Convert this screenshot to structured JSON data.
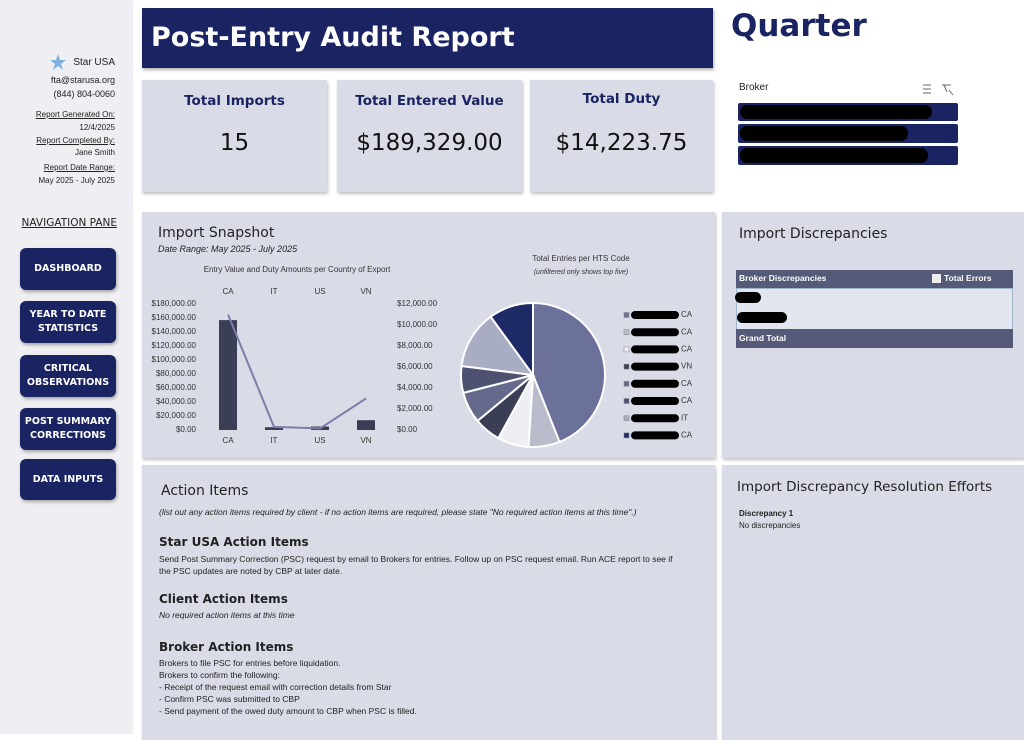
{
  "sidebar": {
    "company": "Star USA",
    "email": "fta@starusa.org",
    "phone": "(844) 804-0060",
    "generated_label": "Report Generated On:",
    "generated": "12/4/2025",
    "completed_label": "Report Completed By:",
    "completed_by": "Jane Smith",
    "range_label": "Report Date Range:",
    "range": "May 2025 - July 2025",
    "nav_title": "NAVIGATION PANE",
    "nav": [
      "DASHBOARD",
      "YEAR TO DATE STATISTICS",
      "CRITICAL OBSERVATIONS",
      "POST SUMMARY CORRECTIONS",
      "DATA INPUTS"
    ]
  },
  "header": {
    "title": "Post-Entry Audit Report",
    "period": "Quarter"
  },
  "kpis": [
    {
      "label": "Total Imports",
      "value": "15"
    },
    {
      "label": "Total Entered Value",
      "value": "$189,329.00"
    },
    {
      "label": "Total Duty",
      "value": "$14,223.75"
    }
  ],
  "broker": {
    "label": "Broker"
  },
  "snapshot": {
    "title": "Import Snapshot",
    "subtitle": "Date Range: May 2025 - July 2025"
  },
  "chart_data": [
    {
      "type": "bar",
      "title": "Entry Value and Duty Amounts per Country of Export",
      "categories": [
        "CA",
        "IT",
        "US",
        "VN"
      ],
      "series": [
        {
          "type": "bar",
          "color": "#3a3f55",
          "values": [
            157000,
            4000,
            5000,
            14000
          ]
        },
        {
          "type": "line",
          "axis": "y2",
          "color": "#7a7ea8",
          "values": [
            11000,
            300,
            150,
            3000
          ]
        }
      ],
      "ylim": [
        0,
        180000
      ],
      "yticks": [
        {
          "value": 0,
          "label": "$0.00"
        },
        {
          "value": 20000,
          "label": "$20,000.00"
        },
        {
          "value": 40000,
          "label": "$40,000.00"
        },
        {
          "value": 60000,
          "label": "$60,000.00"
        },
        {
          "value": 80000,
          "label": "$80,000.00"
        },
        {
          "value": 100000,
          "label": "$100,000.00"
        },
        {
          "value": 120000,
          "label": "$120,000.00"
        },
        {
          "value": 140000,
          "label": "$140,000.00"
        },
        {
          "value": 160000,
          "label": "$160,000.00"
        },
        {
          "value": 180000,
          "label": "$180,000.00"
        }
      ],
      "y2lim": [
        0,
        12000
      ],
      "y2ticks": [
        {
          "value": 0,
          "label": "$0.00"
        },
        {
          "value": 2000,
          "label": "$2,000.00"
        },
        {
          "value": 4000,
          "label": "$4,000.00"
        },
        {
          "value": 6000,
          "label": "$6,000.00"
        },
        {
          "value": 8000,
          "label": "$8,000.00"
        },
        {
          "value": 10000,
          "label": "$10,000.00"
        },
        {
          "value": 12000,
          "label": "$12,000.00"
        }
      ],
      "grid": false
    },
    {
      "type": "pie",
      "title": "Total Entries per HTS Code",
      "subtitle": "(unfiltered only shows top five)",
      "categories": [
        "CA",
        "CA",
        "CA",
        "VN",
        "CA",
        "CA",
        "IT",
        "CA"
      ],
      "values": [
        44,
        7,
        7,
        6,
        7,
        6,
        13,
        10
      ],
      "colors": [
        "#6b7199",
        "#b9bccb",
        "#eeeff4",
        "#3a3f55",
        "#656a8c",
        "#4d5270",
        "#a9adc3",
        "#1e2a66"
      ]
    }
  ],
  "discrepancies": {
    "title": "Import Discrepancies",
    "columns": [
      "Broker Discrepancies",
      "Total Errors"
    ],
    "total_label": "Grand Total"
  },
  "actions": {
    "title": "Action Items",
    "instructions": "(list out any action items required by client - if no action items are required, please state \"No required action items at this time\".)",
    "sections": [
      {
        "heading": "Star USA Action Items",
        "lines": [
          "Send Post Summary Correction (PSC) request by email to Brokers for entries.  Follow up on PSC request email.  Run ACE report to see if the PSC updates are noted by CBP at later date."
        ]
      },
      {
        "heading": "Client Action Items",
        "lines": [
          "No required action items at this time"
        ]
      },
      {
        "heading": "Broker Action Items",
        "lines": [
          "Brokers to file PSC for entries before liquidation.",
          "Brokers to confirm the following:",
          "- Receipt of the request email with correction details from Star",
          "- Confirm PSC was submitted to CBP",
          "- Send payment of the owed duty amount to CBP when PSC is filled."
        ]
      }
    ]
  },
  "resolution": {
    "title": "Import Discrepancy Resolution Efforts",
    "item": "Discrepancy 1",
    "note": "No discrepancies"
  }
}
